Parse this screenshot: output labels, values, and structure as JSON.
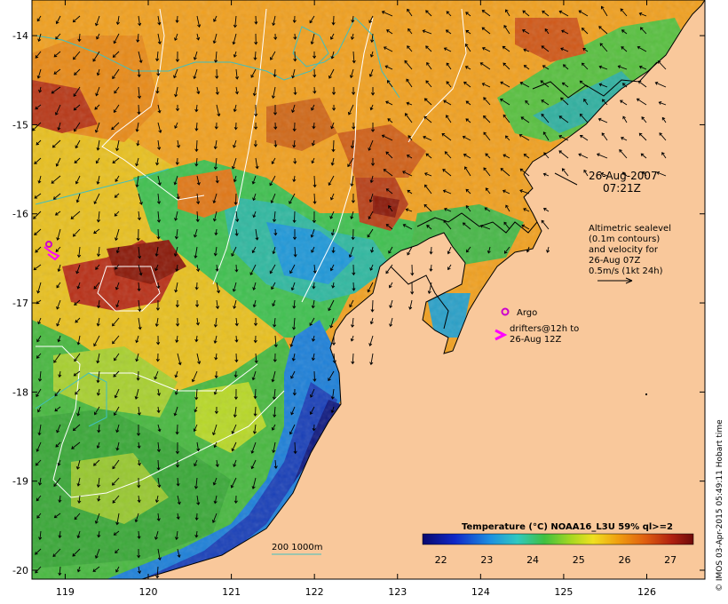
{
  "map": {
    "date_label": "26-Aug-2007",
    "time_label": "07:21Z",
    "altimetry_lines": [
      "Altimetric sealevel",
      "(0.1m contours)",
      "and velocity for",
      "26-Aug 07Z",
      "0.5m/s (1kt 24h)"
    ],
    "argo_label": "Argo",
    "drifters_lines": [
      "drifters@12h to",
      "26-Aug 12Z"
    ],
    "depth_legend": "200  1000m",
    "colorbar_title": "Temperature (°C) NOAA16_L3U 59% ql>=2",
    "colorbar_ticks": [
      "22",
      "23",
      "24",
      "25",
      "26",
      "27"
    ],
    "credit": "© IMOS 03-Apr-2015 05:49:11 Hobart time",
    "lon_ticks": [
      "119",
      "120",
      "121",
      "122",
      "123",
      "124",
      "125",
      "126"
    ],
    "lat_ticks": [
      "-14",
      "-15",
      "-16",
      "-17",
      "-18",
      "-19",
      "-20"
    ],
    "colors": {
      "land": "#f9c89b",
      "cold": "#1a1a8c",
      "warm": "#8b1a0a",
      "argo": "#cc00cc",
      "drifter": "#ff00ff",
      "contour_200": "#40c0c0"
    }
  },
  "chart_data": {
    "type": "heatmap",
    "title": "Temperature (°C) NOAA16_L3U 59% ql>=2",
    "x_ticks": [
      119,
      120,
      121,
      122,
      123,
      124,
      125,
      126
    ],
    "y_ticks": [
      -14,
      -15,
      -16,
      -17,
      -18,
      -19,
      -20
    ],
    "xlim": [
      118.6,
      126.7
    ],
    "ylim": [
      -20.1,
      -13.6
    ],
    "colorbar_range": [
      21.6,
      27.5
    ],
    "colorbar_ticks": [
      22,
      23,
      24,
      25,
      26,
      27
    ]
  }
}
